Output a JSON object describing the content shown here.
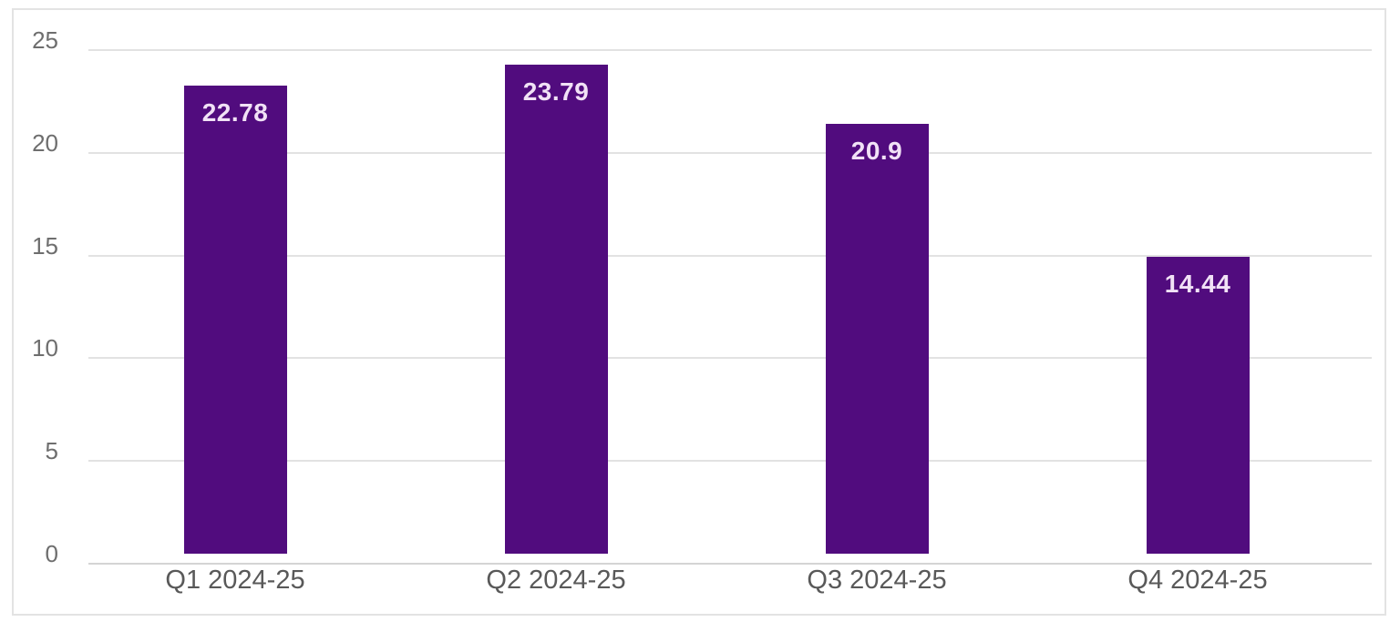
{
  "chart_data": {
    "type": "bar",
    "title": "",
    "xlabel": "",
    "ylabel": "",
    "categories": [
      "Q1 2024-25",
      "Q2 2024-25",
      "Q3 2024-25",
      "Q4 2024-25"
    ],
    "values": [
      22.78,
      23.79,
      20.9,
      14.44
    ],
    "value_labels": [
      "22.78",
      "23.79",
      "20.9",
      "14.44"
    ],
    "ylim": [
      0,
      25
    ],
    "yticks": [
      0,
      5,
      10,
      15,
      20,
      25
    ],
    "grid": true,
    "legend": false,
    "colors": {
      "bar": "#510C7E",
      "value_label": "#F1E2F6",
      "y_tick_text": "#6E6E6E",
      "x_category_text": "#595959",
      "gridline": "#E2E2E2",
      "baseline": "#D4D4D4",
      "frame_border": "#E3E3E3",
      "background": "#FFFFFF"
    }
  }
}
